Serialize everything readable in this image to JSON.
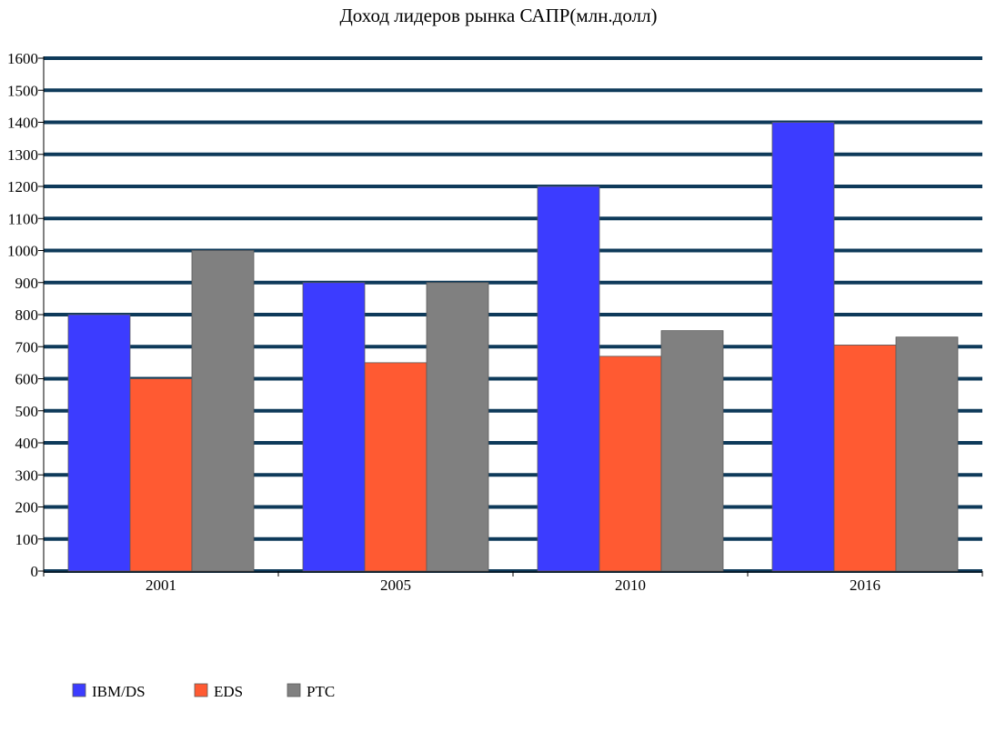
{
  "chart_data": {
    "type": "bar",
    "title": "Доход лидеров рынка САПР(млн.долл)",
    "xlabel": "",
    "ylabel": "",
    "categories": [
      "2001",
      "2005",
      "2010",
      "2016"
    ],
    "series": [
      {
        "name": "IBM/DS",
        "color": "#3c3cff",
        "values": [
          800,
          900,
          1200,
          1400
        ]
      },
      {
        "name": "EDS",
        "color": "#ff5a32",
        "values": [
          600,
          650,
          670,
          705
        ]
      },
      {
        "name": "PTC",
        "color": "#808080",
        "values": [
          1000,
          900,
          750,
          730
        ]
      }
    ],
    "ylim": [
      0,
      1600
    ],
    "y_ticks": [
      0,
      100,
      200,
      300,
      400,
      500,
      600,
      700,
      800,
      900,
      1000,
      1100,
      1200,
      1300,
      1400,
      1500,
      1600
    ],
    "grid": true,
    "grid_color": "#0e3a5a",
    "legend_position": "bottom-left"
  }
}
